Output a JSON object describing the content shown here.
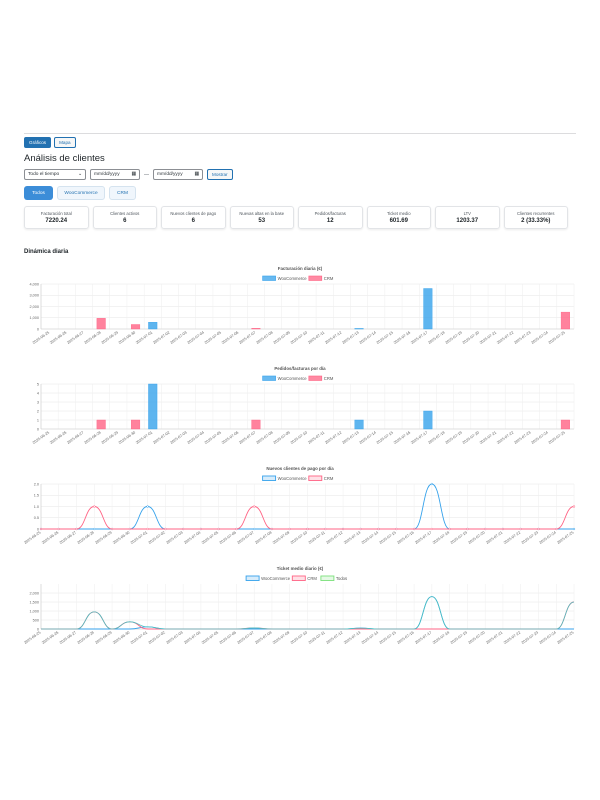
{
  "view_toggle": {
    "charts_label": "Gráficos",
    "map_label": "Mapa"
  },
  "page_title": "Análisis de clientes",
  "filters": {
    "period": "Todo el tiempo",
    "date_from_placeholder": "mm/dd/yyyy",
    "date_to_placeholder": "mm/dd/yyyy",
    "separator": "—",
    "show_label": "Mostrar"
  },
  "source_tabs": {
    "all": "Todos",
    "woo": "WooCommerce",
    "crm": "CRM"
  },
  "kpis": [
    {
      "label": "Facturación total",
      "value": "7220.24"
    },
    {
      "label": "Clientes activos",
      "value": "6"
    },
    {
      "label": "Nuevos clientes de pago",
      "value": "6"
    },
    {
      "label": "Nuevas altas en la base",
      "value": "53"
    },
    {
      "label": "Pedidos/facturas",
      "value": "12"
    },
    {
      "label": "Ticket medio",
      "value": "601.69"
    },
    {
      "label": "LTV",
      "value": "1203.37"
    },
    {
      "label": "Clientes recurrentes",
      "value": "2 (33.33%)"
    }
  ],
  "section_title": "Dinámica diaria",
  "colors": {
    "woo": "#36a2eb",
    "crm": "#ff6384",
    "todos": "#4bc0c0",
    "todos_legend": "#7be07b"
  },
  "dates": [
    "2025-06-25",
    "2025-06-26",
    "2025-06-27",
    "2025-06-28",
    "2025-06-29",
    "2025-06-30",
    "2025-07-01",
    "2025-07-02",
    "2025-07-03",
    "2025-07-04",
    "2025-07-05",
    "2025-07-06",
    "2025-07-07",
    "2025-07-08",
    "2025-07-09",
    "2025-07-10",
    "2025-07-11",
    "2025-07-12",
    "2025-07-13",
    "2025-07-14",
    "2025-07-15",
    "2025-07-16",
    "2025-07-17",
    "2025-07-18",
    "2025-07-19",
    "2025-07-20",
    "2025-07-21",
    "2025-07-22",
    "2025-07-23",
    "2025-07-24",
    "2025-07-25"
  ],
  "chart_data": [
    {
      "type": "bar",
      "title": "Facturación diaria (€)",
      "legend": "top",
      "ylim": [
        0,
        4000
      ],
      "yticks": [
        "0",
        "1,000",
        "2,000",
        "3,000",
        "4,000"
      ],
      "series": [
        {
          "name": "WooCommerce",
          "values": [
            0,
            0,
            0,
            0,
            0,
            0,
            600,
            0,
            0,
            0,
            0,
            0,
            0,
            0,
            0,
            0,
            0,
            0,
            50,
            0,
            0,
            0,
            3600,
            0,
            0,
            0,
            0,
            0,
            0,
            0,
            0
          ]
        },
        {
          "name": "CRM",
          "values": [
            0,
            0,
            0,
            950,
            0,
            400,
            0,
            0,
            0,
            0,
            0,
            0,
            60,
            0,
            0,
            0,
            0,
            0,
            0,
            0,
            0,
            0,
            0,
            0,
            0,
            0,
            0,
            0,
            0,
            0,
            1500
          ]
        }
      ]
    },
    {
      "type": "bar",
      "title": "Pedidos/facturas por día",
      "legend": "top",
      "ylim": [
        0,
        5
      ],
      "yticks": [
        "0",
        "1",
        "2",
        "3",
        "4",
        "5"
      ],
      "series": [
        {
          "name": "WooCommerce",
          "values": [
            0,
            0,
            0,
            0,
            0,
            0,
            5,
            0,
            0,
            0,
            0,
            0,
            0,
            0,
            0,
            0,
            0,
            0,
            1,
            0,
            0,
            0,
            2,
            0,
            0,
            0,
            0,
            0,
            0,
            0,
            0
          ]
        },
        {
          "name": "CRM",
          "values": [
            0,
            0,
            0,
            1,
            0,
            1,
            0,
            0,
            0,
            0,
            0,
            0,
            1,
            0,
            0,
            0,
            0,
            0,
            0,
            0,
            0,
            0,
            0,
            0,
            0,
            0,
            0,
            0,
            0,
            0,
            1
          ]
        }
      ]
    },
    {
      "type": "line",
      "title": "Nuevos clientes de pago por día",
      "legend": "top",
      "ylim": [
        0,
        2
      ],
      "yticks": [
        "0",
        "0.5",
        "1.0",
        "1.5",
        "2.0"
      ],
      "series": [
        {
          "name": "WooCommerce",
          "values": [
            0,
            0,
            0,
            0,
            0,
            0,
            1,
            0,
            0,
            0,
            0,
            0,
            0,
            0,
            0,
            0,
            0,
            0,
            0,
            0,
            0,
            0,
            2,
            0,
            0,
            0,
            0,
            0,
            0,
            0,
            0
          ]
        },
        {
          "name": "CRM",
          "values": [
            0,
            0,
            0,
            1,
            0,
            0,
            0,
            0,
            0,
            0,
            0,
            0,
            1,
            0,
            0,
            0,
            0,
            0,
            0,
            0,
            0,
            0,
            0,
            0,
            0,
            0,
            0,
            0,
            0,
            0,
            1
          ]
        }
      ]
    },
    {
      "type": "line",
      "title": "Ticket medio diario (€)",
      "legend": "top",
      "ylim": [
        0,
        2500
      ],
      "yticks": [
        "0",
        "500",
        "1,000",
        "1,500",
        "2,000"
      ],
      "series": [
        {
          "name": "WooCommerce",
          "values": [
            0,
            0,
            0,
            0,
            0,
            0,
            120,
            0,
            0,
            0,
            0,
            0,
            0,
            0,
            0,
            0,
            0,
            0,
            50,
            0,
            0,
            0,
            1800,
            0,
            0,
            0,
            0,
            0,
            0,
            0,
            0
          ]
        },
        {
          "name": "CRM",
          "values": [
            0,
            0,
            0,
            950,
            0,
            400,
            0,
            0,
            0,
            0,
            0,
            0,
            60,
            0,
            0,
            0,
            0,
            0,
            0,
            0,
            0,
            0,
            0,
            0,
            0,
            0,
            0,
            0,
            0,
            0,
            1500
          ]
        },
        {
          "name": "Todos",
          "values": [
            0,
            0,
            0,
            950,
            0,
            400,
            120,
            0,
            0,
            0,
            0,
            0,
            60,
            0,
            0,
            0,
            0,
            0,
            50,
            0,
            0,
            0,
            1800,
            0,
            0,
            0,
            0,
            0,
            0,
            0,
            1500
          ]
        }
      ]
    }
  ]
}
